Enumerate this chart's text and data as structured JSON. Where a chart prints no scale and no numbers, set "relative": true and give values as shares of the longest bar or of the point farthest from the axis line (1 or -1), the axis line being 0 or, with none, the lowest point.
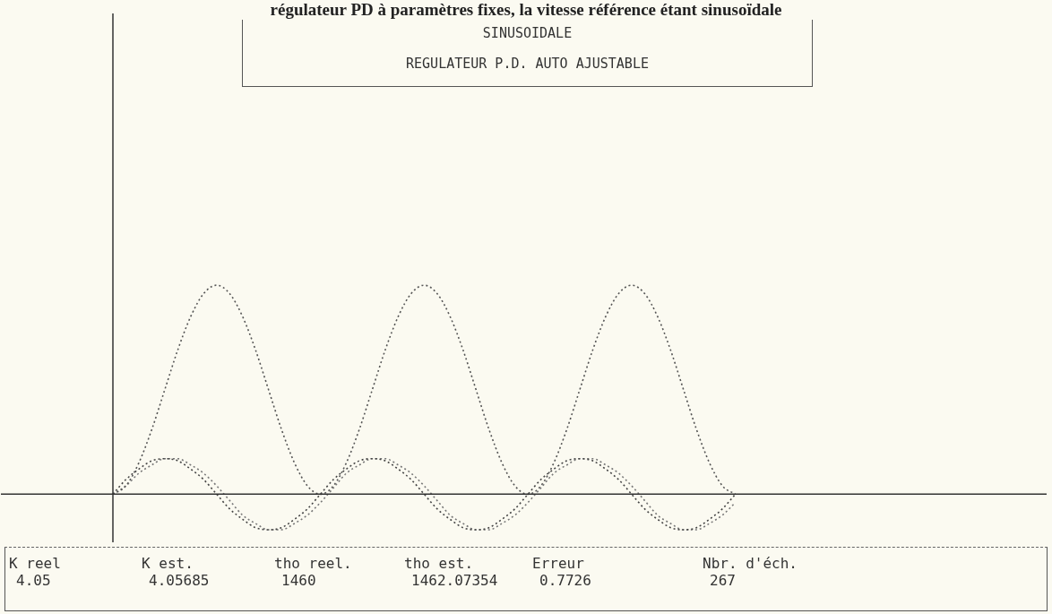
{
  "chart_data": {
    "type": "line",
    "title": "régulateur PD à paramètres fixes, la vitesse référence étant sinusoïdale",
    "relative": true,
    "legend": false,
    "marker": "none",
    "line_style": "dotted",
    "categories": [
      null,
      null,
      null,
      null,
      null,
      null,
      null,
      null,
      null,
      null,
      null,
      null,
      null,
      null,
      null,
      null,
      null,
      null,
      null,
      null,
      null,
      null,
      null,
      null,
      null,
      null,
      null,
      null,
      null,
      null,
      null,
      null,
      null,
      null,
      null,
      null,
      null,
      null,
      null,
      null,
      null,
      null,
      null,
      null,
      null,
      null,
      null,
      null,
      null,
      null,
      null,
      null,
      null,
      null,
      null,
      null,
      null,
      null,
      null,
      null,
      null,
      null,
      null,
      null,
      null,
      null,
      null,
      null,
      null,
      null,
      null,
      null,
      null
    ],
    "series": [
      {
        "color": "#555555",
        "values": [
          0,
          0.04,
          0.15,
          0.31,
          0.5,
          0.69,
          0.85,
          0.96,
          1,
          0.96,
          0.85,
          0.69,
          0.5,
          0.31,
          0.15,
          0.04,
          0,
          0.04,
          0.15,
          0.31,
          0.5,
          0.69,
          0.85,
          0.96,
          1,
          0.96,
          0.85,
          0.69,
          0.5,
          0.31,
          0.15,
          0.04,
          0,
          0.04,
          0.15,
          0.31,
          0.5,
          0.69,
          0.85,
          0.96,
          1,
          0.96,
          0.85,
          0.69,
          0.5,
          0.31,
          0.15,
          0.04,
          0,
          null,
          null,
          null,
          null,
          null,
          null,
          null,
          null,
          null,
          null,
          null,
          null,
          null,
          null,
          null,
          null,
          null,
          null,
          null,
          null,
          null,
          null,
          null,
          null
        ]
      },
      {
        "color": "#444444",
        "values": [
          0,
          0.07,
          0.12,
          0.16,
          0.17,
          0.16,
          0.12,
          0.07,
          0,
          -0.07,
          -0.12,
          -0.16,
          -0.17,
          -0.16,
          -0.12,
          -0.07,
          0,
          0.07,
          0.12,
          0.16,
          0.17,
          0.16,
          0.12,
          0.07,
          0,
          -0.07,
          -0.12,
          -0.16,
          -0.17,
          -0.16,
          -0.12,
          -0.07,
          0,
          0.07,
          0.12,
          0.16,
          0.17,
          0.16,
          0.12,
          0.07,
          0,
          -0.07,
          -0.12,
          -0.16,
          -0.17,
          -0.16,
          -0.12,
          -0.07,
          0,
          null,
          null,
          null,
          null,
          null,
          null,
          null,
          null,
          null,
          null,
          null,
          null,
          null,
          null,
          null,
          null,
          null,
          null,
          null,
          null,
          null,
          null,
          null,
          null
        ]
      },
      {
        "color": "#777777",
        "values": [
          0,
          0.04,
          0.1,
          0.14,
          0.17,
          0.17,
          0.14,
          0.1,
          0.04,
          -0.03,
          -0.1,
          -0.14,
          -0.17,
          -0.17,
          -0.14,
          -0.1,
          -0.04,
          0.03,
          0.1,
          0.14,
          0.17,
          0.17,
          0.14,
          0.1,
          0.04,
          -0.03,
          -0.1,
          -0.14,
          -0.17,
          -0.17,
          -0.14,
          -0.1,
          -0.04,
          0.03,
          0.1,
          0.14,
          0.17,
          0.17,
          0.14,
          0.1,
          0.04,
          -0.03,
          -0.1,
          -0.14,
          -0.17,
          -0.17,
          -0.14,
          -0.1,
          -0.04,
          null,
          null,
          null,
          null,
          null,
          null,
          null,
          null,
          null,
          null,
          null,
          null,
          null,
          null,
          null,
          null,
          null,
          null,
          null,
          null,
          null,
          null,
          null,
          null
        ]
      }
    ],
    "annotations": [
      "SINUSOIDALE",
      "REGULATEUR P.D. AUTO AJUSTABLE",
      "K reel",
      "K est.",
      "tho reel.",
      "tho est.",
      "Erreur",
      "Nbr. d'éch.",
      "4.05",
      "4.05685",
      "1460",
      "1462.07354",
      "0.7726",
      "267"
    ]
  }
}
